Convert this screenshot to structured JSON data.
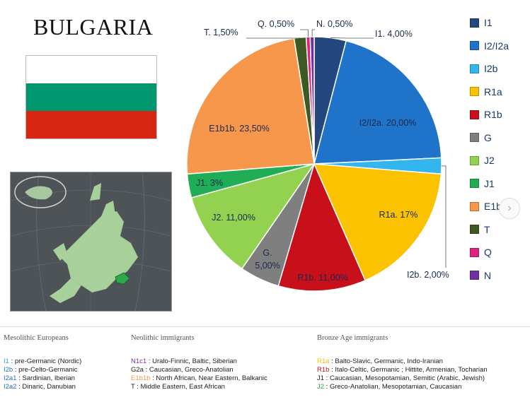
{
  "title": "BULGARIA",
  "flag": {
    "colors": [
      "#ffffff",
      "#00966e",
      "#d62612"
    ]
  },
  "map_icon": "europe-locator-map-icon",
  "chart_data": {
    "type": "pie",
    "slices": [
      {
        "name": "I1",
        "value": 4.0,
        "color": "#24477f",
        "label": "I1. 4,00%"
      },
      {
        "name": "I2/I2a",
        "value": 20.0,
        "color": "#1f73c9",
        "label": "I2/I2a. 20,00%"
      },
      {
        "name": "I2b",
        "value": 2.0,
        "color": "#33b5ee",
        "label": "I2b. 2,00%"
      },
      {
        "name": "R1a",
        "value": 17.0,
        "color": "#fbc200",
        "label": "R1a. 17%"
      },
      {
        "name": "R1b",
        "value": 11.0,
        "color": "#c8101a",
        "label": "R1b. 11,00%"
      },
      {
        "name": "G",
        "value": 5.0,
        "color": "#7f7f7f",
        "label": "G. 5,00%"
      },
      {
        "name": "J2",
        "value": 11.0,
        "color": "#93d250",
        "label": "J2. 11,00%"
      },
      {
        "name": "J1",
        "value": 3.0,
        "color": "#1fad55",
        "label": "J1. 3%"
      },
      {
        "name": "E1b1b",
        "value": 23.5,
        "color": "#f7974b",
        "label": "E1b1b. 23,50%"
      },
      {
        "name": "T",
        "value": 1.5,
        "color": "#3e5a22",
        "label": "T. 1,50%"
      },
      {
        "name": "Q",
        "value": 0.5,
        "color": "#e0237f",
        "label": "Q. 0,50%"
      },
      {
        "name": "N",
        "value": 0.5,
        "color": "#7030a0",
        "label": "N. 0,50%"
      }
    ],
    "legend": [
      "I1",
      "I2/I2a",
      "I2b",
      "R1a",
      "R1b",
      "G",
      "J2",
      "J1",
      "E1b1b",
      "T",
      "Q",
      "N"
    ],
    "legend_position": "right"
  },
  "footer": {
    "columns": [
      {
        "heading": "Mesolithic Europeans",
        "rows": [
          {
            "code": "I1",
            "text": " : pre-Germanic (Nordic)",
            "color": "#33a7e0"
          },
          {
            "code": "I2b",
            "text": " : pre-Celto-Germanic",
            "color": "#1f73c9"
          },
          {
            "code": "I2a1",
            "text": " : Sardinian, Iberian",
            "color": "#1f73c9"
          },
          {
            "code": "I2a2",
            "text": " : Dinaric, Danubian",
            "color": "#1f73c9"
          }
        ]
      },
      {
        "heading": "Neolithic immigrants",
        "rows": [
          {
            "code": "N1c1",
            "text": " : Uralo-Finnic, Baltic, Siberian",
            "color": "#7030a0"
          },
          {
            "code": "G2a",
            "text": " : Caucasian, Greco-Anatolian",
            "color": "#222222"
          },
          {
            "code": "E1b1b",
            "text": " : North African, Near Eastern, Balkanic",
            "color": "#f7974b"
          },
          {
            "code": "T",
            "text": " : Middle Eastern, East African",
            "color": "#222222"
          }
        ]
      },
      {
        "heading": "Bronze Age immigrants",
        "rows": [
          {
            "code": "R1a",
            "text": " : Balto-Slavic, Germanic, Indo-Iranian",
            "color": "#fbc200"
          },
          {
            "code": "R1b",
            "text": " : Italo-Celtic, Germanic ; Hittite, Armenian, Tocharian",
            "color": "#c8101a"
          },
          {
            "code": "J1",
            "text": " : Caucasian, Mesopotamian, Semitic (Arabic, Jewish)",
            "color": "#222222"
          },
          {
            "code": "J2",
            "text": " : Greco-Anatolian, Mesopotamian, Caucasian",
            "color": "#1fad55"
          }
        ]
      }
    ]
  },
  "next_button_icon": "chevron-right-icon"
}
